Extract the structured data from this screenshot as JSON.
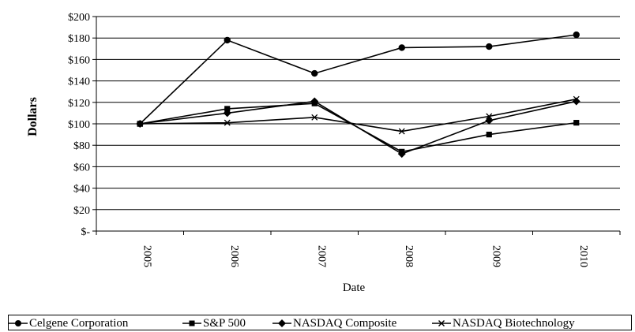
{
  "chart_data": {
    "type": "line",
    "title": "",
    "xlabel": "Date",
    "ylabel": "Dollars",
    "ylim": [
      0,
      200
    ],
    "y_ticks": [
      0,
      20,
      40,
      60,
      80,
      100,
      120,
      140,
      160,
      180,
      200
    ],
    "y_tick_labels": [
      "$-",
      "$20",
      "$40",
      "$60",
      "$80",
      "$100",
      "$120",
      "$140",
      "$160",
      "$180",
      "$200"
    ],
    "categories": [
      "2005",
      "2006",
      "2007",
      "2008",
      "2009",
      "2010"
    ],
    "grid": "horizontal",
    "legend_placement": "bottom",
    "series": [
      {
        "name": "Celgene Corporation",
        "marker": "circle",
        "values": [
          100,
          178,
          147,
          171,
          172,
          183
        ]
      },
      {
        "name": "S&P 500",
        "marker": "square",
        "values": [
          100,
          114,
          119,
          74,
          90,
          101
        ]
      },
      {
        "name": "NASDAQ Composite",
        "marker": "diamond",
        "values": [
          100,
          110,
          121,
          72,
          103,
          121
        ]
      },
      {
        "name": "NASDAQ Biotechnology",
        "marker": "x",
        "values": [
          100,
          101,
          106,
          93,
          107,
          123
        ]
      }
    ]
  }
}
